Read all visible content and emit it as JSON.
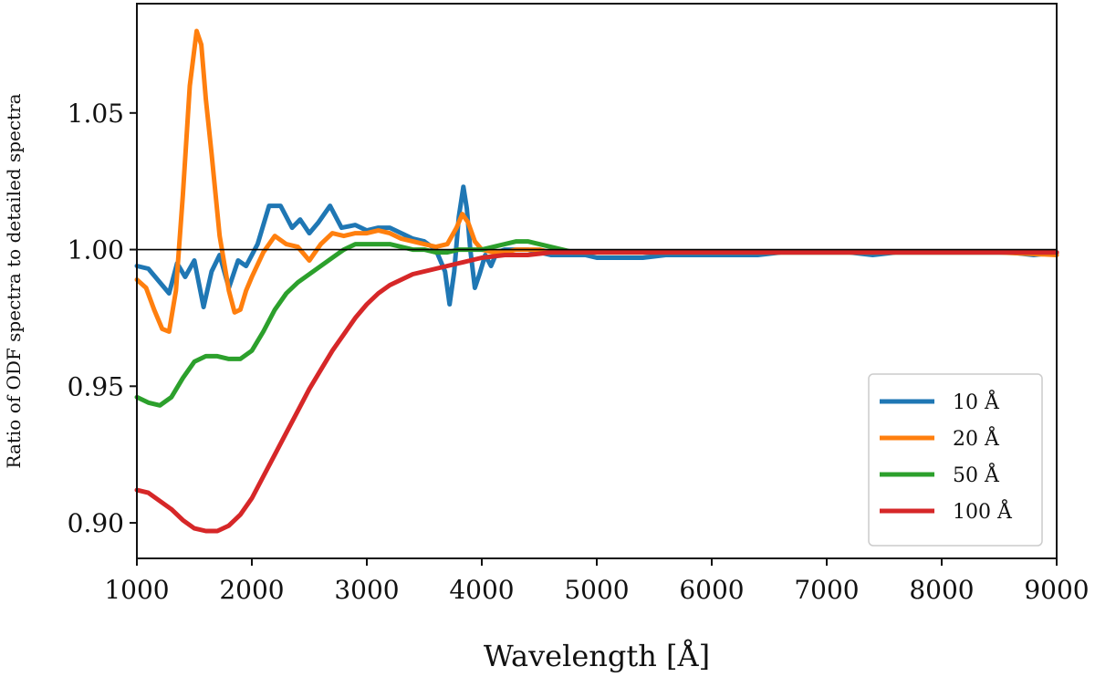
{
  "chart_data": {
    "type": "line",
    "title": "",
    "xlabel": "Wavelength [Å]",
    "ylabel": "Ratio of ODF spectra to detailed spectra",
    "xlim": [
      1000,
      9000
    ],
    "ylim": [
      0.887,
      1.09
    ],
    "xticks": [
      1000,
      2000,
      3000,
      4000,
      5000,
      6000,
      7000,
      8000,
      9000
    ],
    "xtick_labels": [
      "1000",
      "2000",
      "3000",
      "4000",
      "5000",
      "6000",
      "7000",
      "8000",
      "9000"
    ],
    "yticks": [
      0.9,
      0.95,
      1.0,
      1.05
    ],
    "ytick_labels": [
      "0.90",
      "0.95",
      "1.00",
      "1.05"
    ],
    "reference_line": 1.0,
    "grid": false,
    "legend_position": "lower-right",
    "series": [
      {
        "name": "10 Å",
        "color": "#1f77b4",
        "x": [
          1000,
          1100,
          1200,
          1280,
          1350,
          1420,
          1500,
          1580,
          1650,
          1720,
          1800,
          1880,
          1950,
          2050,
          2150,
          2250,
          2350,
          2420,
          2500,
          2580,
          2680,
          2780,
          2900,
          3000,
          3100,
          3200,
          3300,
          3400,
          3500,
          3600,
          3680,
          3720,
          3760,
          3800,
          3840,
          3870,
          3900,
          3940,
          3980,
          4030,
          4080,
          4130,
          4200,
          4300,
          4400,
          4500,
          4600,
          4700,
          4800,
          4900,
          5000,
          5200,
          5400,
          5600,
          5800,
          6000,
          6200,
          6400,
          6600,
          6800,
          7000,
          7200,
          7400,
          7600,
          7800,
          8000,
          8100,
          8200,
          8400,
          8600,
          8800,
          9000
        ],
        "values": [
          0.994,
          0.993,
          0.988,
          0.984,
          0.995,
          0.99,
          0.996,
          0.979,
          0.992,
          0.998,
          0.986,
          0.996,
          0.994,
          1.002,
          1.016,
          1.016,
          1.008,
          1.011,
          1.006,
          1.01,
          1.016,
          1.008,
          1.009,
          1.007,
          1.008,
          1.008,
          1.006,
          1.004,
          1.003,
          1.0,
          0.992,
          0.98,
          0.992,
          1.012,
          1.023,
          1.015,
          1.0,
          0.986,
          0.991,
          0.998,
          0.994,
          0.999,
          1.0,
          1.0,
          1.0,
          0.999,
          0.998,
          0.998,
          0.998,
          0.998,
          0.997,
          0.997,
          0.997,
          0.998,
          0.998,
          0.998,
          0.998,
          0.998,
          0.999,
          0.999,
          0.999,
          0.999,
          0.998,
          0.999,
          0.999,
          0.999,
          0.999,
          0.999,
          0.999,
          0.999,
          0.998,
          0.999
        ]
      },
      {
        "name": "20 Å",
        "color": "#ff7f0e",
        "x": [
          1000,
          1080,
          1150,
          1220,
          1280,
          1340,
          1400,
          1460,
          1520,
          1560,
          1600,
          1650,
          1720,
          1800,
          1850,
          1900,
          1950,
          2000,
          2100,
          2200,
          2300,
          2400,
          2500,
          2600,
          2700,
          2800,
          2900,
          3000,
          3100,
          3200,
          3300,
          3400,
          3500,
          3600,
          3700,
          3780,
          3830,
          3880,
          3940,
          4000,
          4100,
          4200,
          4300,
          4400,
          4500,
          4600,
          4700,
          4800,
          5000,
          5500,
          6000,
          6500,
          7000,
          7500,
          8000,
          8500,
          9000
        ],
        "values": [
          0.989,
          0.986,
          0.978,
          0.971,
          0.97,
          0.985,
          1.02,
          1.06,
          1.08,
          1.075,
          1.055,
          1.035,
          1.005,
          0.985,
          0.977,
          0.978,
          0.985,
          0.99,
          0.999,
          1.005,
          1.002,
          1.001,
          0.996,
          1.002,
          1.006,
          1.005,
          1.006,
          1.006,
          1.007,
          1.006,
          1.004,
          1.003,
          1.002,
          1.001,
          1.002,
          1.008,
          1.013,
          1.01,
          1.003,
          1.0,
          0.999,
          0.999,
          1.0,
          1.0,
          1.0,
          0.999,
          0.999,
          0.999,
          0.999,
          0.999,
          0.999,
          0.999,
          0.999,
          0.999,
          0.999,
          0.999,
          0.998
        ]
      },
      {
        "name": "50 Å",
        "color": "#2ca02c",
        "x": [
          1000,
          1100,
          1200,
          1300,
          1400,
          1500,
          1600,
          1700,
          1800,
          1900,
          2000,
          2100,
          2200,
          2300,
          2400,
          2500,
          2600,
          2700,
          2800,
          2900,
          3000,
          3100,
          3200,
          3300,
          3400,
          3500,
          3600,
          3700,
          3800,
          3900,
          4000,
          4100,
          4200,
          4300,
          4400,
          4500,
          4600,
          4700,
          4800,
          5000,
          5500,
          6000,
          6500,
          7000,
          7500,
          8000,
          8500,
          9000
        ],
        "values": [
          0.946,
          0.944,
          0.943,
          0.946,
          0.953,
          0.959,
          0.961,
          0.961,
          0.96,
          0.96,
          0.963,
          0.97,
          0.978,
          0.984,
          0.988,
          0.991,
          0.994,
          0.997,
          1.0,
          1.002,
          1.002,
          1.002,
          1.002,
          1.001,
          1.0,
          1.0,
          0.999,
          0.999,
          1.0,
          1.0,
          1.0,
          1.001,
          1.002,
          1.003,
          1.003,
          1.002,
          1.001,
          1.0,
          0.999,
          0.999,
          0.999,
          0.999,
          0.999,
          0.999,
          0.999,
          0.999,
          0.999,
          0.999
        ]
      },
      {
        "name": "100 Å",
        "color": "#d62728",
        "x": [
          1000,
          1100,
          1200,
          1300,
          1400,
          1500,
          1600,
          1700,
          1800,
          1900,
          2000,
          2100,
          2200,
          2300,
          2400,
          2500,
          2600,
          2700,
          2800,
          2900,
          3000,
          3100,
          3200,
          3300,
          3400,
          3500,
          3600,
          3700,
          3800,
          3900,
          4000,
          4200,
          4400,
          4600,
          4800,
          5000,
          5500,
          6000,
          6500,
          7000,
          7500,
          8000,
          8500,
          9000
        ],
        "values": [
          0.912,
          0.911,
          0.908,
          0.905,
          0.901,
          0.898,
          0.897,
          0.897,
          0.899,
          0.903,
          0.909,
          0.917,
          0.925,
          0.933,
          0.941,
          0.949,
          0.956,
          0.963,
          0.969,
          0.975,
          0.98,
          0.984,
          0.987,
          0.989,
          0.991,
          0.992,
          0.993,
          0.994,
          0.995,
          0.996,
          0.997,
          0.998,
          0.998,
          0.999,
          0.999,
          0.999,
          0.999,
          0.999,
          0.999,
          0.999,
          0.999,
          0.999,
          0.999,
          0.999
        ]
      }
    ]
  }
}
